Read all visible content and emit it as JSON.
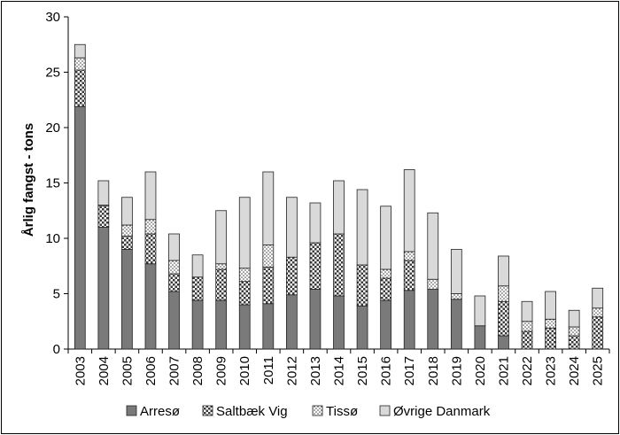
{
  "chart_data": {
    "type": "bar",
    "stacked": true,
    "title": "",
    "xlabel": "",
    "ylabel": "Årlig fangst - tons",
    "ylim": [
      0,
      30
    ],
    "yticks": [
      0,
      5,
      10,
      15,
      20,
      25,
      30
    ],
    "grid": false,
    "legend_position": "bottom",
    "categories": [
      "2003",
      "2004",
      "2005",
      "2006",
      "2007",
      "2008",
      "2009",
      "2010",
      "2011",
      "2012",
      "2013",
      "2014",
      "2015",
      "2016",
      "2017",
      "2018",
      "2019",
      "2020",
      "2021",
      "2022",
      "2023",
      "2024",
      "2025"
    ],
    "series": [
      {
        "name": "Arresø",
        "pattern": "solid",
        "color": "#7a7a7a",
        "values": [
          21.9,
          11.0,
          9.0,
          7.7,
          5.2,
          4.4,
          4.4,
          4.0,
          4.1,
          4.9,
          5.4,
          4.8,
          3.9,
          4.4,
          5.3,
          5.4,
          4.5,
          2.1,
          1.2,
          0.0,
          0.0,
          0.0,
          0.0
        ]
      },
      {
        "name": "Saltbæk Vig",
        "pattern": "checker",
        "color": "#444444",
        "values": [
          3.3,
          1.9,
          1.2,
          2.7,
          1.6,
          2.1,
          2.8,
          2.1,
          3.3,
          3.4,
          4.2,
          5.6,
          3.7,
          2.0,
          2.7,
          0.0,
          0.0,
          0.0,
          3.1,
          1.6,
          1.9,
          1.2,
          2.9
        ]
      },
      {
        "name": "Tissø",
        "pattern": "dots",
        "color": "#555555",
        "values": [
          1.1,
          0.1,
          1.0,
          1.3,
          1.2,
          0.0,
          0.5,
          1.2,
          2.0,
          0.0,
          0.0,
          0.0,
          0.0,
          0.8,
          0.8,
          0.9,
          0.5,
          0.0,
          1.4,
          0.9,
          0.8,
          0.8,
          0.8
        ]
      },
      {
        "name": "Øvrige Danmark",
        "pattern": "solid",
        "color": "#d9d9d9",
        "values": [
          1.2,
          2.2,
          2.5,
          4.3,
          2.4,
          2.0,
          4.8,
          6.4,
          6.6,
          5.4,
          3.6,
          4.8,
          6.8,
          5.7,
          7.4,
          6.0,
          4.0,
          2.7,
          2.7,
          1.8,
          2.5,
          1.5,
          1.8
        ]
      }
    ]
  }
}
